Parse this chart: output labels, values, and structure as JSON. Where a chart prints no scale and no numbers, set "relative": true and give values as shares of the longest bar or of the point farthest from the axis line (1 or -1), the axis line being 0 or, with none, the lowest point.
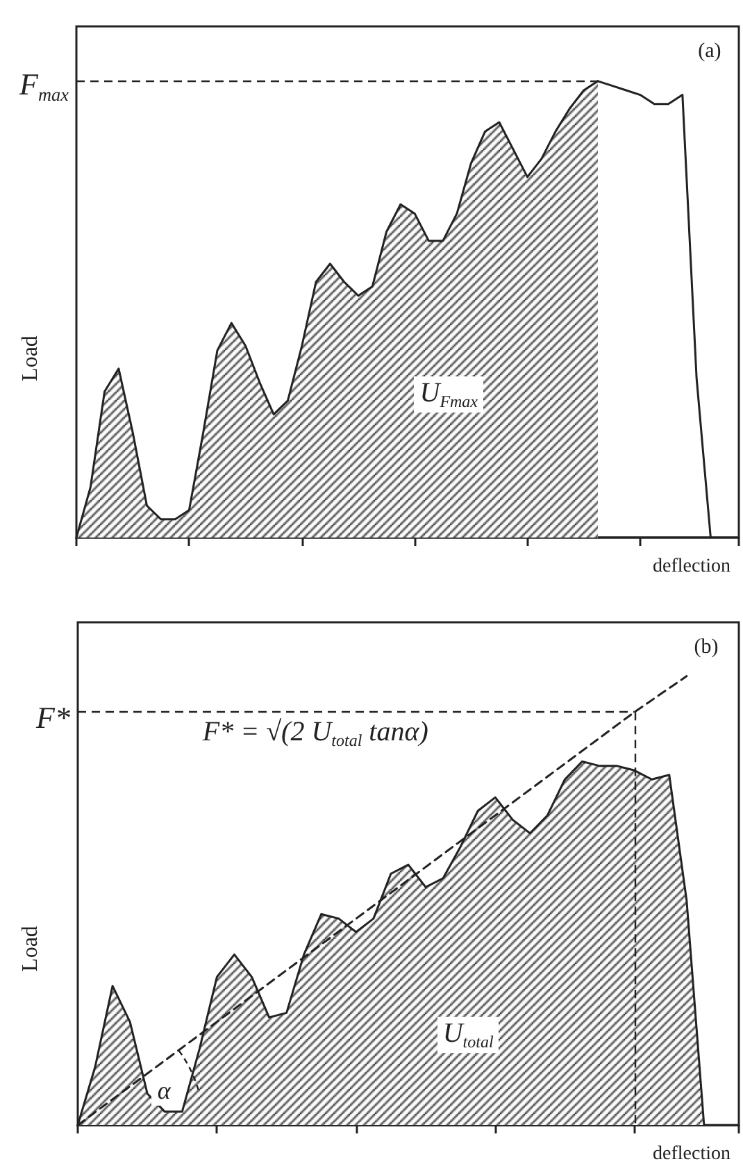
{
  "chart_data": [
    {
      "type": "area",
      "relative": true,
      "xlabel": "deflection",
      "ylabel": "Load",
      "grid": false,
      "categories": [
        null,
        null,
        null,
        null,
        null,
        null,
        null,
        null,
        null,
        null,
        null,
        null,
        null,
        null,
        null,
        null,
        null,
        null,
        null,
        null,
        null,
        null,
        null,
        null,
        null,
        null,
        null,
        null,
        null,
        null,
        null,
        null,
        null,
        null,
        null,
        null,
        null,
        null,
        null,
        null,
        null,
        null,
        null,
        null,
        null,
        null,
        null,
        null
      ],
      "series": [
        {
          "type": "area",
          "color": "#222222",
          "values": [
            0,
            0.11,
            0.32,
            0.37,
            0.23,
            0.07,
            0.04,
            0.04,
            0.06,
            0.23,
            0.41,
            0.47,
            0.42,
            0.34,
            0.27,
            0.3,
            0.42,
            0.56,
            0.6,
            0.56,
            0.53,
            0.55,
            0.67,
            0.73,
            0.71,
            0.65,
            0.65,
            0.71,
            0.82,
            0.89,
            0.91,
            0.85,
            0.79,
            0.83,
            0.89,
            0.94,
            0.98,
            1,
            null,
            null,
            null,
            null,
            null,
            null,
            null,
            null,
            null,
            null
          ]
        },
        {
          "type": "line",
          "color": "#222222",
          "values": [
            null,
            null,
            null,
            null,
            null,
            null,
            null,
            null,
            null,
            null,
            null,
            null,
            null,
            null,
            null,
            null,
            null,
            null,
            null,
            null,
            null,
            null,
            null,
            null,
            null,
            null,
            null,
            null,
            null,
            null,
            null,
            null,
            null,
            null,
            null,
            null,
            null,
            1,
            0.99,
            0.98,
            0.97,
            0.95,
            0.95,
            0.97,
            0.35,
            0,
            null,
            null
          ]
        }
      ],
      "ref_lines": [
        {
          "axis": "y",
          "value": 1,
          "label": "F$_{max}$",
          "line_style": "dashed"
        }
      ],
      "annotations": [
        "(a)",
        "U$_{Fmax}$"
      ]
    },
    {
      "type": "area",
      "relative": true,
      "xlabel": "deflection",
      "ylabel": "Load",
      "grid": false,
      "categories": [
        null,
        null,
        null,
        null,
        null,
        null,
        null,
        null,
        null,
        null,
        null,
        null,
        null,
        null,
        null,
        null,
        null,
        null,
        null,
        null,
        null,
        null,
        null,
        null,
        null,
        null,
        null,
        null,
        null,
        null,
        null,
        null,
        null,
        null,
        null,
        null,
        null,
        null,
        null
      ],
      "series": [
        {
          "type": "area",
          "color": "#222222",
          "values": [
            0,
            0.13,
            0.31,
            0.23,
            0.07,
            0.03,
            0.03,
            0.17,
            0.33,
            0.38,
            0.33,
            0.24,
            0.25,
            0.38,
            0.47,
            0.46,
            0.43,
            0.46,
            0.56,
            0.58,
            0.53,
            0.55,
            0.62,
            0.7,
            0.73,
            0.68,
            0.65,
            0.69,
            0.77,
            0.81,
            0.8,
            0.8,
            0.79,
            0.77,
            0.78,
            0.5,
            0,
            null,
            null
          ]
        },
        {
          "type": "line",
          "color": "#222222",
          "line_style": "dashed",
          "values": [
            0,
            null,
            null,
            null,
            null,
            null,
            null,
            null,
            null,
            null,
            null,
            null,
            null,
            null,
            null,
            null,
            null,
            null,
            null,
            null,
            null,
            null,
            null,
            null,
            null,
            null,
            null,
            null,
            null,
            null,
            null,
            null,
            0.92,
            null,
            null,
            1,
            null,
            null,
            null
          ]
        }
      ],
      "ref_lines": [
        {
          "axis": "y",
          "value": 0.92,
          "label": "F*",
          "line_style": "dashed"
        }
      ],
      "annotations": [
        "(b)",
        "F* = √(2 U$_{total}$ tanα)",
        "U$_{total}$",
        "α"
      ]
    }
  ]
}
